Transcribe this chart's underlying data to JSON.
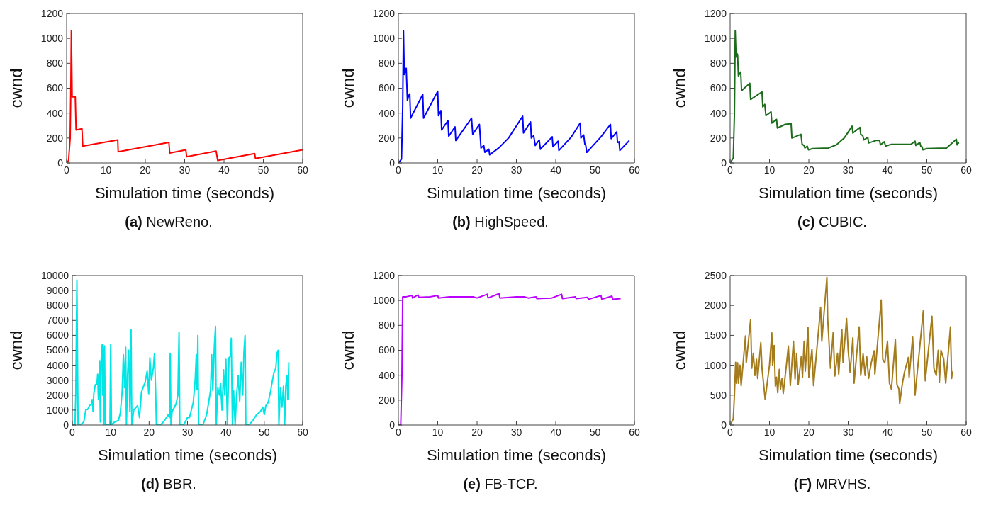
{
  "chart_data": [
    {
      "type": "line",
      "title": "(a) NewReno.",
      "xlabel": "Simulation time (seconds)",
      "ylabel": "cwnd",
      "xlim": [
        0,
        60
      ],
      "xticks": [
        0,
        10,
        20,
        30,
        40,
        50,
        60
      ],
      "ylim": [
        0,
        1200
      ],
      "yticks": [
        0,
        200,
        400,
        600,
        800,
        1000,
        1200
      ],
      "line_style": "solid",
      "series": [
        {
          "color": "#ff0000",
          "x": [
            0,
            0.5,
            0.9,
            1.1,
            1.2,
            1.4,
            2.2,
            2.4,
            3.9,
            4.1,
            13,
            13.1,
            26,
            26.2,
            30.3,
            30.5,
            38,
            38.4,
            47.8,
            48,
            60
          ],
          "values": [
            0,
            20,
            200,
            700,
            1060,
            530,
            530,
            265,
            275,
            135,
            185,
            90,
            165,
            80,
            105,
            50,
            95,
            20,
            75,
            35,
            105
          ]
        }
      ]
    },
    {
      "type": "line",
      "title": "(b) HighSpeed.",
      "xlabel": "Simulation time (seconds)",
      "ylabel": "cwnd",
      "xlim": [
        0,
        60
      ],
      "xticks": [
        0,
        10,
        20,
        30,
        40,
        50,
        60
      ],
      "ylim": [
        0,
        1200
      ],
      "yticks": [
        0,
        200,
        400,
        600,
        800,
        1000,
        1200
      ],
      "line_style": "solid",
      "series": [
        {
          "color": "#0000ff",
          "x": [
            0,
            0.8,
            1.1,
            1.3,
            1.5,
            2,
            2.3,
            2.6,
            2.9,
            3.1,
            6.2,
            6.4,
            10,
            10.2,
            10.8,
            11,
            12.6,
            12.8,
            14.4,
            14.6,
            18.6,
            18.9,
            20.6,
            21,
            21.7,
            22,
            23,
            23.2,
            25.5,
            28,
            31.6,
            31.8,
            33.6,
            33.8,
            34.4,
            34.8,
            35.8,
            36.1,
            39.1,
            39.3,
            40.6,
            40.8,
            44,
            46.2,
            46.4,
            47.1,
            47.4,
            47.6,
            47.9,
            51.5,
            53.9,
            54.1,
            55.5,
            55.7,
            56.1,
            56.3,
            58.7
          ],
          "values": [
            0,
            30,
            450,
            1060,
            710,
            760,
            500,
            540,
            555,
            360,
            550,
            360,
            575,
            380,
            420,
            265,
            340,
            215,
            290,
            180,
            360,
            230,
            310,
            120,
            140,
            85,
            110,
            65,
            120,
            200,
            375,
            240,
            330,
            200,
            220,
            140,
            185,
            110,
            210,
            130,
            175,
            100,
            210,
            320,
            200,
            225,
            150,
            145,
            85,
            210,
            310,
            195,
            250,
            165,
            170,
            100,
            180
          ]
        }
      ]
    },
    {
      "type": "line",
      "title": "(c) CUBIC.",
      "xlabel": "Simulation time (seconds)",
      "ylabel": "cwnd",
      "xlim": [
        0,
        60
      ],
      "xticks": [
        0,
        10,
        20,
        30,
        40,
        50,
        60
      ],
      "ylim": [
        0,
        1200
      ],
      "yticks": [
        0,
        200,
        400,
        600,
        800,
        1000,
        1200
      ],
      "line_style": "solid",
      "series": [
        {
          "color": "#1a6b1a",
          "x": [
            0,
            0.8,
            1.1,
            1.3,
            1.5,
            1.7,
            1.9,
            2.1,
            2.5,
            2.7,
            2.9,
            5,
            5.2,
            8.1,
            8.3,
            8.8,
            9.1,
            10.4,
            10.6,
            11.8,
            12,
            14,
            15.5,
            15.7,
            18,
            18.3,
            18.8,
            19,
            19.6,
            19.9,
            21,
            25,
            27,
            29,
            31,
            31.2,
            33,
            33.2,
            33.7,
            34,
            35,
            35.2,
            37,
            38,
            38.2,
            39.2,
            39.5,
            41,
            46,
            47,
            47.2,
            48.2,
            48.5,
            48.8,
            49,
            50,
            55,
            57.5,
            57.7,
            58,
            58.2
          ],
          "values": [
            0,
            40,
            400,
            1060,
            850,
            880,
            870,
            700,
            720,
            730,
            580,
            640,
            510,
            570,
            450,
            470,
            380,
            410,
            320,
            350,
            280,
            310,
            315,
            200,
            230,
            150,
            140,
            120,
            135,
            105,
            115,
            120,
            145,
            200,
            295,
            240,
            285,
            230,
            220,
            185,
            205,
            160,
            180,
            180,
            145,
            170,
            135,
            150,
            150,
            175,
            140,
            165,
            130,
            130,
            105,
            115,
            120,
            190,
            145,
            160,
            160
          ]
        }
      ]
    },
    {
      "type": "line",
      "title": "(d) BBR.",
      "xlabel": "Simulation time (seconds)",
      "ylabel": "cwnd",
      "xlim": [
        0,
        60
      ],
      "xticks": [
        0,
        10,
        20,
        30,
        40,
        50,
        60
      ],
      "ylim": [
        0,
        10000
      ],
      "yticks": [
        0,
        1000,
        2000,
        3000,
        4000,
        5000,
        6000,
        7000,
        8000,
        9000,
        10000
      ],
      "line_style": "solid",
      "series": [
        {
          "color": "#00e5e5",
          "x": [
            0,
            0.7,
            0.9,
            1.2,
            1.5,
            2,
            3,
            3.5,
            4,
            4.5,
            5,
            5.2,
            5.4,
            5.6,
            6,
            6.4,
            6.6,
            6.8,
            7.1,
            7.3,
            7.5,
            7.8,
            7.9,
            8,
            8.2,
            8.4,
            8.6,
            9,
            9.8,
            10,
            10.2,
            11,
            12,
            12.5,
            13,
            13.3,
            13.6,
            13.9,
            14.1,
            14.4,
            14.7,
            15,
            15.3,
            15.5,
            16,
            17,
            17.5,
            18,
            19,
            19.5,
            19.9,
            20.2,
            20.6,
            21.1,
            21.4,
            21.7,
            21.9,
            23,
            24,
            25,
            25.3,
            25.5,
            25.7,
            26,
            27,
            27.5,
            27.8,
            28,
            29,
            30,
            30.5,
            31,
            31.5,
            32,
            32.3,
            32.5,
            32.7,
            32.9,
            34,
            35,
            36,
            36.3,
            36.6,
            37,
            37.3,
            37.5,
            37.9,
            38.3,
            38.6,
            39,
            39.4,
            39.7,
            40,
            40.4,
            40.8,
            41.2,
            41.4,
            41.7,
            42,
            42.4,
            42.8,
            43.2,
            43.6,
            44,
            44.4,
            44.7,
            45,
            45.2,
            46,
            47,
            48,
            49,
            49.6,
            50,
            50.4,
            51,
            51.6,
            52,
            52.5,
            53,
            53.3,
            53.6,
            53.8,
            54.2,
            54.6,
            55,
            55.3,
            55.6,
            55.9,
            56.1,
            56.4
          ],
          "values": [
            0,
            0,
            2000,
            9700,
            0,
            0,
            200,
            1000,
            1050,
            1300,
            1400,
            1700,
            900,
            2100,
            2700,
            2700,
            3400,
            1700,
            4300,
            200,
            4300,
            5400,
            2000,
            5400,
            0,
            5300,
            0,
            0,
            0,
            5400,
            0,
            200,
            300,
            800,
            2300,
            4700,
            2500,
            5200,
            0,
            3400,
            5000,
            900,
            6400,
            0,
            1000,
            1300,
            500,
            2200,
            2900,
            3600,
            2100,
            4500,
            3000,
            3800,
            4800,
            2300,
            0,
            0,
            300,
            700,
            500,
            4800,
            0,
            900,
            1400,
            2000,
            6200,
            0,
            0,
            500,
            500,
            1000,
            1500,
            3000,
            4700,
            2400,
            6000,
            0,
            0,
            700,
            2300,
            4700,
            2300,
            5300,
            6600,
            0,
            2500,
            2000,
            2800,
            1000,
            3700,
            2000,
            4400,
            0,
            4500,
            4600,
            5800,
            0,
            2300,
            0,
            2000,
            3300,
            1600,
            4200,
            2000,
            4900,
            6000,
            0,
            0,
            300,
            700,
            900,
            1200,
            700,
            1300,
            1500,
            2200,
            2800,
            3500,
            3800,
            4800,
            5000,
            0,
            2500,
            1200,
            2600,
            0,
            2600,
            3300,
            1700,
            4200
          ]
        }
      ]
    },
    {
      "type": "line",
      "title": "(e) FB-TCP.",
      "xlabel": "Simulation time (seconds)",
      "ylabel": "cwnd",
      "xlim": [
        0,
        60
      ],
      "xticks": [
        0,
        10,
        20,
        30,
        40,
        50,
        60
      ],
      "ylim": [
        0,
        1200
      ],
      "yticks": [
        0,
        200,
        400,
        600,
        800,
        1000,
        1200
      ],
      "line_style": "solid",
      "series": [
        {
          "color": "#bb00ff",
          "x": [
            0,
            0.6,
            0.9,
            1.1,
            2,
            3.5,
            3.6,
            5,
            5.2,
            8,
            10,
            10.2,
            13,
            15,
            19,
            20,
            22.6,
            22.8,
            25.6,
            25.8,
            30,
            32,
            33,
            35,
            35.2,
            39,
            41.5,
            41.7,
            45,
            45.2,
            48,
            48.4,
            51.5,
            51.7,
            54.3,
            54.5,
            56.5
          ],
          "values": [
            0,
            0,
            400,
            1030,
            1030,
            1040,
            1020,
            1045,
            1025,
            1030,
            1040,
            1020,
            1030,
            1030,
            1030,
            1020,
            1050,
            1020,
            1055,
            1020,
            1030,
            1030,
            1020,
            1030,
            1015,
            1020,
            1050,
            1015,
            1030,
            1015,
            1025,
            1010,
            1040,
            1010,
            1035,
            1010,
            1015
          ]
        }
      ]
    },
    {
      "type": "line",
      "title": "(F) MRVHS.",
      "xlabel": "Simulation time (seconds)",
      "ylabel": "cwnd",
      "xlim": [
        0,
        60
      ],
      "xticks": [
        0,
        10,
        20,
        30,
        40,
        50,
        60
      ],
      "ylim": [
        0,
        2500
      ],
      "yticks": [
        0,
        500,
        1000,
        1500,
        2000,
        2500
      ],
      "line_style": "solid",
      "series": [
        {
          "color": "#a57c1b",
          "x": [
            0,
            0.8,
            1.1,
            1.4,
            1.6,
            1.9,
            2.1,
            2.5,
            2.8,
            3.9,
            4.1,
            5.2,
            5.5,
            5.9,
            6.3,
            6.7,
            7,
            7.8,
            8.1,
            8.9,
            10,
            10.6,
            10.8,
            11.2,
            11.5,
            11.8,
            12.1,
            12.5,
            12.8,
            13.2,
            13.5,
            14.3,
            14.8,
            15.3,
            16.1,
            16.5,
            16.9,
            17.3,
            18.1,
            18.4,
            18.8,
            19.1,
            19.8,
            20,
            20.8,
            21.2,
            23,
            23.3,
            24.6,
            24.8,
            25.5,
            26.2,
            26.6,
            27.3,
            27.6,
            28.4,
            28.7,
            29.6,
            30,
            30.5,
            31.2,
            31.5,
            32.8,
            33.2,
            33.8,
            34.3,
            34.7,
            35.2,
            35.9,
            36.6,
            36.8,
            38.4,
            38.8,
            39.3,
            40,
            40.5,
            41,
            42,
            42.4,
            42.9,
            43.1,
            43.8,
            44.3,
            45.3,
            45.5,
            46.4,
            47,
            49.1,
            49.6,
            51.3,
            51.8,
            52.4,
            52.9,
            53.2,
            53.6,
            54.3,
            54.8,
            56,
            56.3,
            56.5
          ],
          "values": [
            0,
            100,
            500,
            1050,
            700,
            1040,
            700,
            1000,
            660,
            1490,
            1040,
            1760,
            950,
            1200,
            830,
            1100,
            780,
            1380,
            950,
            430,
            1000,
            1540,
            1000,
            1330,
            650,
            800,
            540,
            930,
            600,
            780,
            530,
            1000,
            1320,
            660,
            1400,
            770,
            1200,
            680,
            1150,
            800,
            1400,
            900,
            1630,
            800,
            1270,
            660,
            1970,
            1400,
            2470,
            1780,
            950,
            1550,
            820,
            1200,
            850,
            1600,
            1050,
            1780,
            1250,
            880,
            1460,
            700,
            1640,
            830,
            1190,
            830,
            1150,
            780,
            1050,
            1240,
            850,
            2090,
            1100,
            1040,
            1400,
            700,
            600,
            1430,
            680,
            600,
            360,
            700,
            880,
            1130,
            800,
            1470,
            500,
            1910,
            740,
            1820,
            950,
            830,
            1250,
            720,
            1250,
            1100,
            700,
            1640,
            780,
            900
          ]
        }
      ]
    }
  ]
}
